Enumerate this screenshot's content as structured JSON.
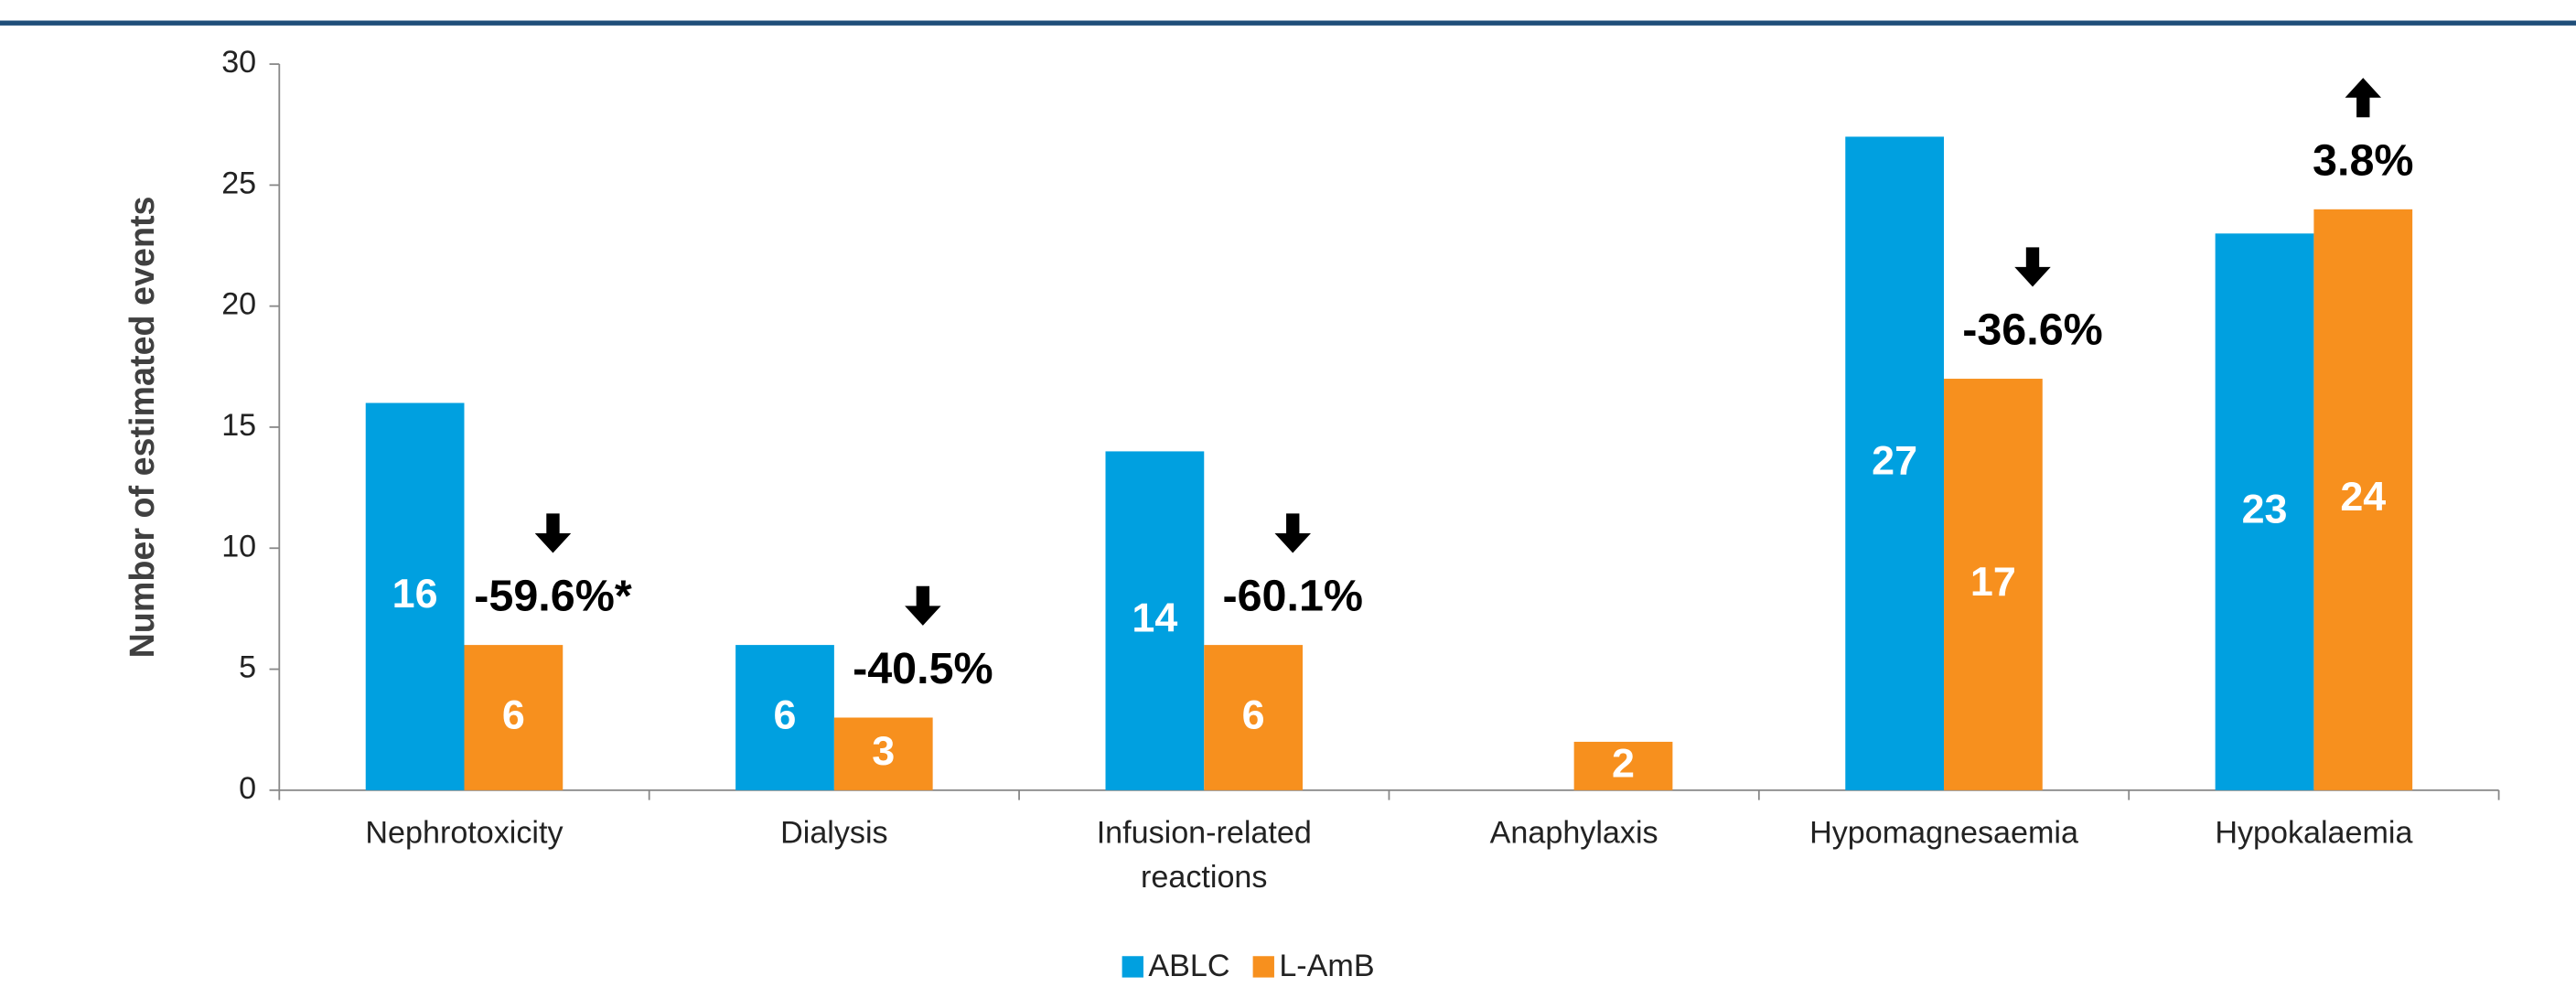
{
  "chart_data": {
    "type": "bar",
    "y_label": "Number of estimated events",
    "categories": [
      "Nephrotoxicity",
      "Dialysis",
      "Infusion-related reactions",
      "Anaphylaxis",
      "Hypomagnesaemia",
      "Hypokalaemia"
    ],
    "series": [
      {
        "name": "ABLC",
        "color": "#00a0e0",
        "values": [
          16,
          6,
          14,
          null,
          27,
          23
        ]
      },
      {
        "name": "L-AmB",
        "color": "#f7901e",
        "values": [
          6,
          3,
          6,
          2,
          17,
          24
        ]
      }
    ],
    "annotations": [
      {
        "text": "-59.6%*",
        "direction": "down"
      },
      {
        "text": "-40.5%",
        "direction": "down"
      },
      {
        "text": "-60.1%",
        "direction": "down"
      },
      null,
      {
        "text": "-36.6%",
        "direction": "down"
      },
      {
        "text": "3.8%",
        "direction": "up"
      }
    ],
    "ylim": [
      0,
      30
    ],
    "yticks": [
      0,
      5,
      10,
      15,
      20,
      25,
      30
    ],
    "legend": "bottom"
  }
}
